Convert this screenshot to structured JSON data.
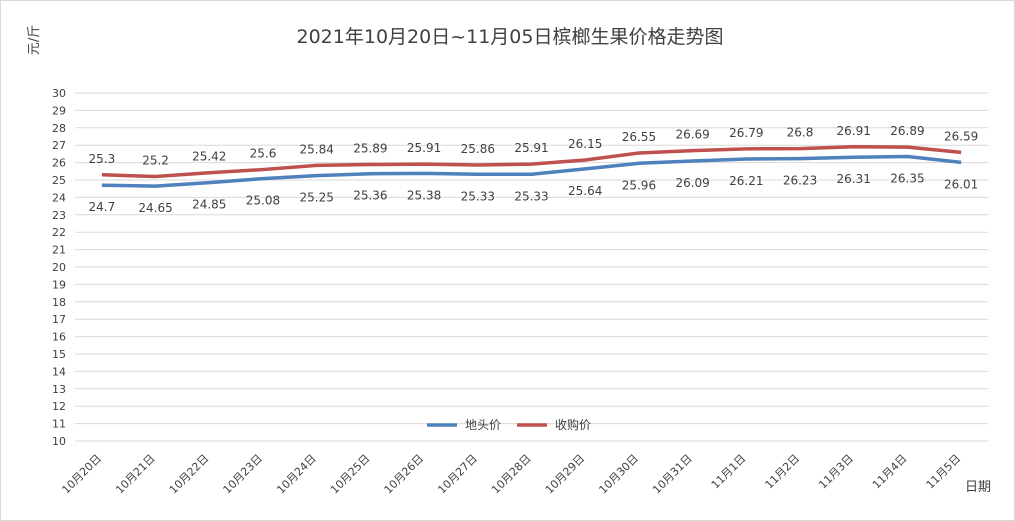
{
  "chart_data": {
    "type": "line",
    "title": "2021年10月20日~11月05日槟榔生果价格走势图",
    "ylabel": "元/斤",
    "xlabel": "日期",
    "ylim": [
      10,
      30
    ],
    "yticks": [
      10,
      11,
      12,
      13,
      14,
      15,
      16,
      17,
      18,
      19,
      20,
      21,
      22,
      23,
      24,
      25,
      26,
      27,
      28,
      29,
      30
    ],
    "grid": true,
    "legend_position": "bottom-center",
    "categories": [
      "10月20日",
      "10月21日",
      "10月22日",
      "10月23日",
      "10月24日",
      "10月25日",
      "10月26日",
      "10月27日",
      "10月28日",
      "10月29日",
      "10月30日",
      "10月31日",
      "11月1日",
      "11月2日",
      "11月3日",
      "11月4日",
      "11月5日"
    ],
    "series": [
      {
        "name": "地头价",
        "color": "#4f81bd",
        "values": [
          24.7,
          24.65,
          24.85,
          25.08,
          25.25,
          25.36,
          25.38,
          25.33,
          25.33,
          25.64,
          25.96,
          26.09,
          26.21,
          26.23,
          26.31,
          26.35,
          26.01
        ],
        "labels": [
          "24.7",
          "24.65",
          "24.85",
          "25.08",
          "25.25",
          "25.36",
          "25.38",
          "25.33",
          "25.33",
          "25.64",
          "25.96",
          "26.09",
          "26.21",
          "26.23",
          "26.31",
          "26.35",
          "26.01"
        ],
        "label_position": "below"
      },
      {
        "name": "收购价",
        "color": "#c0504d",
        "values": [
          25.3,
          25.2,
          25.42,
          25.6,
          25.84,
          25.89,
          25.91,
          25.86,
          25.91,
          26.15,
          26.55,
          26.69,
          26.79,
          26.8,
          26.91,
          26.89,
          26.59
        ],
        "labels": [
          "25.3",
          "25.2",
          "25.42",
          "25.6",
          "25.84",
          "25.89",
          "25.91",
          "25.86",
          "25.91",
          "26.15",
          "26.55",
          "26.69",
          "26.79",
          "26.8",
          "26.91",
          "26.89",
          "26.59"
        ],
        "label_position": "above"
      }
    ]
  }
}
